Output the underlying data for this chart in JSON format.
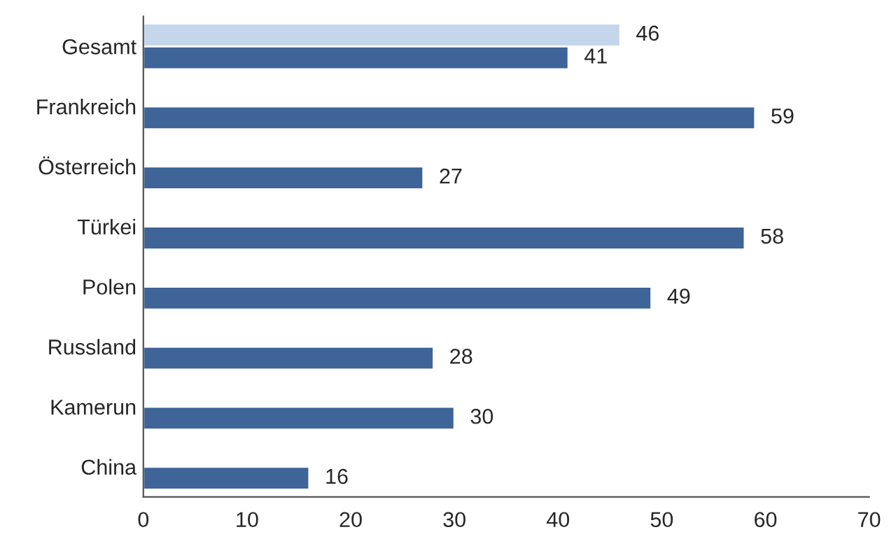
{
  "chart_data": {
    "type": "bar",
    "orientation": "horizontal",
    "categories": [
      "Gesamt",
      "Frankreich",
      "Österreich",
      "Türkei",
      "Polen",
      "Russland",
      "Kamerun",
      "China"
    ],
    "series": [
      {
        "color": "#c5d5ec",
        "values": [
          46,
          null,
          null,
          null,
          null,
          null,
          null,
          null
        ]
      },
      {
        "color": "#3e6498",
        "values": [
          41,
          59,
          27,
          58,
          49,
          28,
          30,
          16
        ]
      }
    ],
    "xlim": [
      0,
      70
    ],
    "xticks": [
      0,
      10,
      20,
      30,
      40,
      50,
      60,
      70
    ],
    "data_labels": true,
    "grid": false,
    "legend": false
  }
}
